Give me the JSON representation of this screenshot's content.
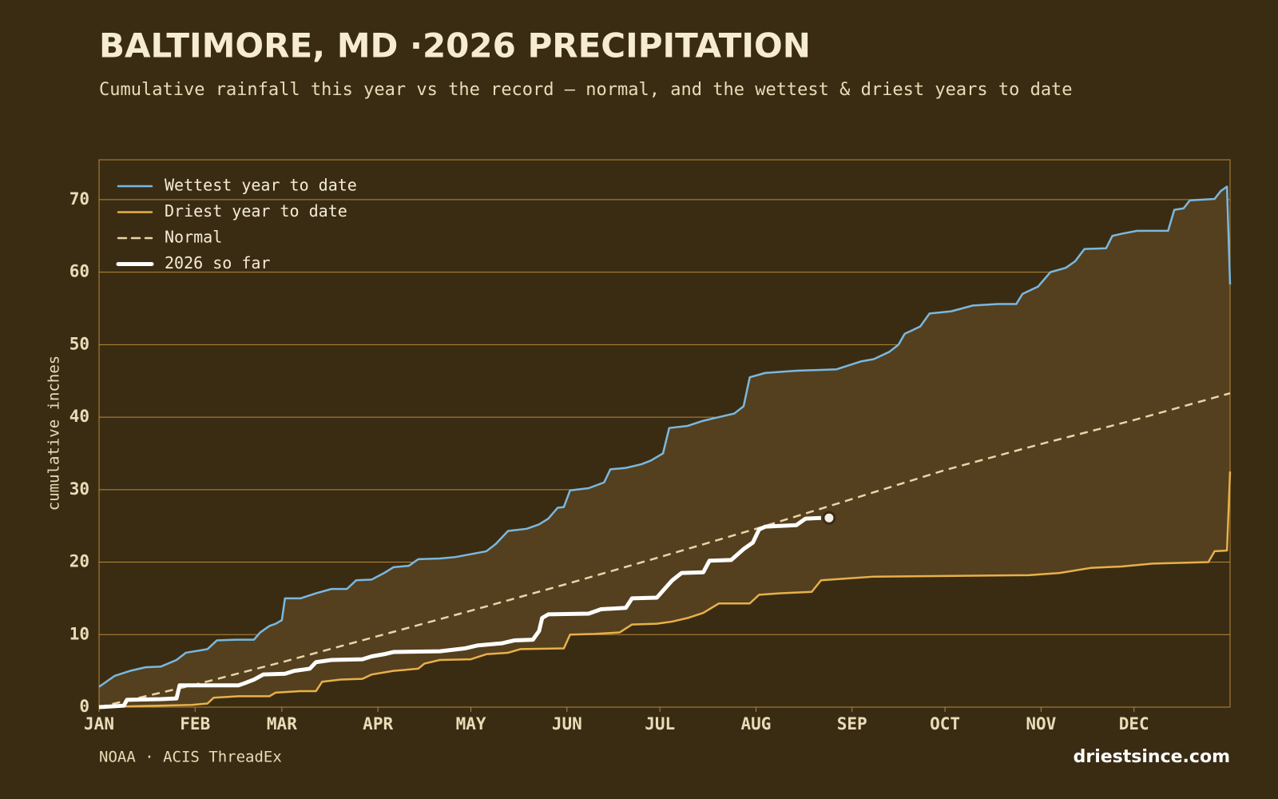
{
  "chart_data": {
    "type": "line",
    "title": "BALTIMORE, MD ·2026 PRECIPITATION",
    "subtitle": "Cumulative rainfall this year vs the record — normal, and the wettest & driest years to date",
    "y_label": "cumulative inches",
    "source": "NOAA · ACIS ThreadEx",
    "site": "driestsince.com",
    "xlim": [
      0,
      365
    ],
    "xticks": [
      {
        "value": 0,
        "label": "JAN"
      },
      {
        "value": 31,
        "label": "FEB"
      },
      {
        "value": 59,
        "label": "MAR"
      },
      {
        "value": 90,
        "label": "APR"
      },
      {
        "value": 120,
        "label": "MAY"
      },
      {
        "value": 151,
        "label": "JUN"
      },
      {
        "value": 181,
        "label": "JUL"
      },
      {
        "value": 212,
        "label": "AUG"
      },
      {
        "value": 243,
        "label": "SEP"
      },
      {
        "value": 273,
        "label": "OCT"
      },
      {
        "value": 304,
        "label": "NOV"
      },
      {
        "value": 334,
        "label": "DEC"
      }
    ],
    "ylim": [
      0,
      75.5
    ],
    "yticks": [
      0,
      10,
      20,
      30,
      40,
      50,
      60,
      70
    ],
    "grid": true,
    "legend": "upper left",
    "band_color": "#54401e",
    "series": [
      {
        "name": "Wettest year to date",
        "color": "#7ab8e0",
        "style": "solid",
        "x": [
          0,
          5,
          10,
          15,
          20,
          25,
          28,
          35,
          38,
          44,
          50,
          52,
          55,
          57,
          59,
          60,
          65,
          70,
          75,
          80,
          83,
          88,
          92,
          95,
          100,
          103,
          110,
          115,
          120,
          125,
          128,
          132,
          138,
          142,
          145,
          148,
          150,
          152,
          158,
          163,
          165,
          170,
          175,
          178,
          182,
          184,
          190,
          195,
          200,
          205,
          208,
          210,
          215,
          225,
          238,
          246,
          250,
          255,
          258,
          260,
          265,
          268,
          275,
          282,
          290,
          296,
          298,
          303,
          307,
          312,
          315,
          318,
          325,
          327,
          330,
          335,
          345,
          347,
          350,
          352,
          360,
          362,
          364,
          365
        ],
        "values": [
          2.8,
          4.3,
          5.0,
          5.5,
          5.6,
          6.5,
          7.5,
          8.0,
          9.2,
          9.3,
          9.3,
          10.3,
          11.2,
          11.5,
          12.0,
          15.0,
          15.0,
          15.7,
          16.3,
          16.3,
          17.5,
          17.6,
          18.5,
          19.3,
          19.5,
          20.4,
          20.5,
          20.7,
          21.1,
          21.5,
          22.5,
          24.3,
          24.6,
          25.2,
          26.0,
          27.5,
          27.6,
          29.9,
          30.2,
          31.0,
          32.8,
          33.0,
          33.5,
          34.0,
          35.0,
          38.5,
          38.8,
          39.5,
          40.0,
          40.5,
          41.5,
          45.5,
          46.1,
          46.4,
          46.6,
          47.7,
          48.0,
          49.0,
          50.0,
          51.5,
          52.5,
          54.3,
          54.6,
          55.4,
          55.6,
          55.6,
          57.0,
          58.0,
          60.0,
          60.6,
          61.5,
          63.2,
          63.3,
          65.0,
          65.3,
          65.7,
          65.7,
          68.6,
          68.8,
          69.9,
          70.1,
          71.2,
          71.8,
          58.3
        ]
      },
      {
        "name": "Driest year to date",
        "color": "#e8b04a",
        "style": "solid",
        "x": [
          0,
          20,
          30,
          35,
          37,
          45,
          55,
          57,
          65,
          70,
          72,
          78,
          85,
          88,
          95,
          103,
          105,
          110,
          120,
          125,
          132,
          136,
          150,
          152,
          160,
          168,
          172,
          180,
          185,
          190,
          195,
          200,
          210,
          213,
          220,
          230,
          233,
          240,
          250,
          300,
          310,
          320,
          330,
          340,
          358,
          360,
          364,
          365
        ],
        "values": [
          0,
          0.2,
          0.3,
          0.5,
          1.3,
          1.5,
          1.5,
          2.0,
          2.2,
          2.2,
          3.5,
          3.8,
          3.9,
          4.5,
          5.0,
          5.3,
          6.0,
          6.5,
          6.6,
          7.3,
          7.5,
          8.0,
          8.1,
          10.0,
          10.1,
          10.3,
          11.4,
          11.5,
          11.8,
          12.3,
          13.0,
          14.3,
          14.3,
          15.5,
          15.7,
          15.9,
          17.5,
          17.7,
          18.0,
          18.2,
          18.5,
          19.2,
          19.4,
          19.8,
          20.0,
          21.5,
          21.6,
          32.5
        ]
      },
      {
        "name": "Normal",
        "color": "#e8d5a8",
        "style": "dashed",
        "x": [
          0,
          31,
          59,
          90,
          120,
          151,
          181,
          212,
          243,
          273,
          304,
          334,
          365
        ],
        "values": [
          0,
          3.1,
          6.2,
          9.8,
          13.3,
          17.0,
          20.7,
          24.6,
          28.7,
          32.7,
          36.3,
          39.6,
          43.3
        ]
      },
      {
        "name": "2026 so far",
        "color": "#ffffff",
        "style": "bold",
        "end_marker": true,
        "x": [
          0,
          8,
          9,
          20,
          25,
          26,
          45,
          47,
          50,
          53,
          60,
          63,
          68,
          70,
          75,
          85,
          88,
          92,
          95,
          110,
          118,
          122,
          130,
          134,
          140,
          142,
          143,
          145,
          158,
          162,
          170,
          172,
          180,
          185,
          188,
          195,
          197,
          204,
          208,
          211,
          213,
          215,
          225,
          228,
          233
        ],
        "values": [
          0,
          0.2,
          1.0,
          1.1,
          1.2,
          3.0,
          3.0,
          3.3,
          3.8,
          4.5,
          4.6,
          5.0,
          5.3,
          6.2,
          6.5,
          6.6,
          7.0,
          7.3,
          7.6,
          7.7,
          8.1,
          8.5,
          8.8,
          9.2,
          9.3,
          10.5,
          12.3,
          12.8,
          12.9,
          13.5,
          13.7,
          15.0,
          15.1,
          17.5,
          18.5,
          18.6,
          20.2,
          20.3,
          21.8,
          22.7,
          24.5,
          24.9,
          25.1,
          26.0,
          26.1
        ]
      }
    ]
  }
}
